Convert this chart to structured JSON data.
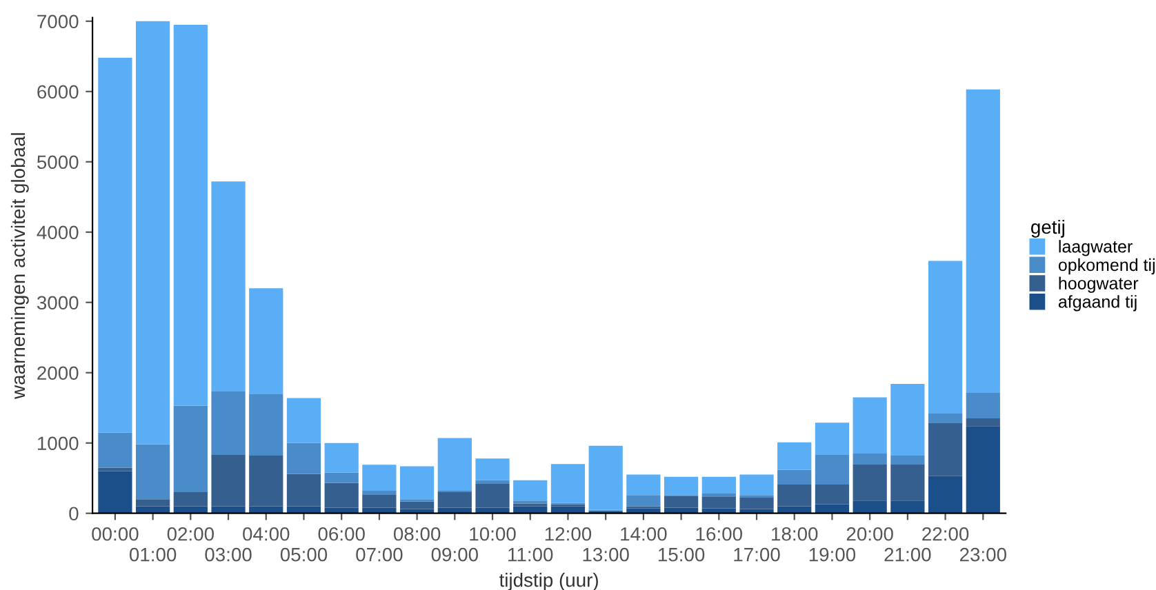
{
  "chart_data": {
    "type": "bar",
    "stacked": true,
    "xlabel": "tijdstip (uur)",
    "ylabel": "waarnemingen activiteit globaal",
    "legend_title": "getij",
    "legend": "right",
    "grid": false,
    "categories": [
      "00:00",
      "01:00",
      "02:00",
      "03:00",
      "04:00",
      "05:00",
      "06:00",
      "07:00",
      "08:00",
      "09:00",
      "10:00",
      "11:00",
      "12:00",
      "13:00",
      "14:00",
      "15:00",
      "16:00",
      "17:00",
      "18:00",
      "19:00",
      "20:00",
      "21:00",
      "22:00",
      "23:00"
    ],
    "ylim": [
      0,
      7050
    ],
    "yticks": [
      0,
      1000,
      2000,
      3000,
      4000,
      5000,
      6000,
      7000
    ],
    "series": [
      {
        "name": "afgaand tij",
        "color": "#1b4f8a",
        "values": [
          600,
          100,
          100,
          100,
          100,
          100,
          80,
          80,
          60,
          80,
          80,
          100,
          100,
          30,
          70,
          80,
          70,
          60,
          100,
          130,
          180,
          180,
          530,
          1240
        ]
      },
      {
        "name": "hoogwater",
        "color": "#355f8e",
        "values": [
          50,
          100,
          200,
          730,
          720,
          460,
          350,
          190,
          110,
          220,
          340,
          40,
          30,
          10,
          30,
          170,
          170,
          170,
          310,
          280,
          520,
          520,
          760,
          110
        ]
      },
      {
        "name": "opkomend tij",
        "color": "#4a8cc9",
        "values": [
          500,
          780,
          1230,
          910,
          880,
          440,
          150,
          50,
          30,
          20,
          50,
          40,
          20,
          10,
          160,
          10,
          50,
          30,
          210,
          420,
          150,
          120,
          130,
          370
        ]
      },
      {
        "name": "laagwater",
        "color": "#5aaef5",
        "values": [
          5330,
          6020,
          5420,
          2980,
          1500,
          640,
          420,
          370,
          470,
          750,
          310,
          290,
          550,
          910,
          290,
          260,
          230,
          290,
          390,
          460,
          800,
          1020,
          2170,
          4310
        ]
      }
    ]
  }
}
